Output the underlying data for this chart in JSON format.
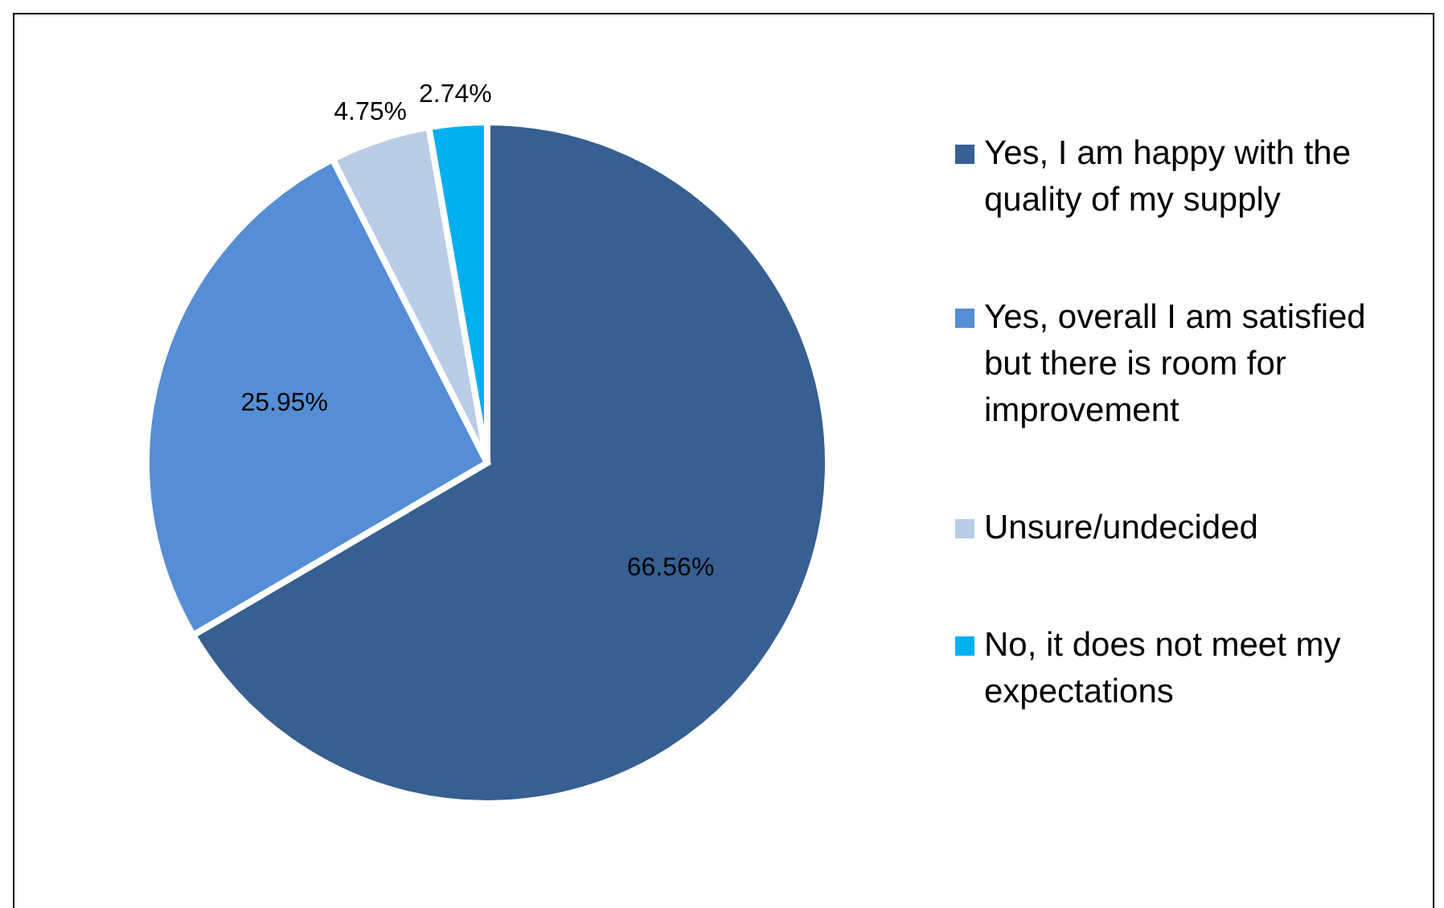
{
  "chart_data": {
    "type": "pie",
    "categories": [
      "Yes, I am happy with the quality of my supply",
      "Yes, overall I am satisfied but there is room for improvement",
      "Unsure/undecided",
      "No, it does not meet my expectations"
    ],
    "values": [
      66.56,
      25.95,
      4.75,
      2.74
    ],
    "colors": [
      "#375f91",
      "#558ed5",
      "#b9cde5",
      "#00b0f0"
    ],
    "value_labels": [
      "66.56%",
      "25.95%",
      "4.75%",
      "2.74%"
    ],
    "legend": "right"
  }
}
